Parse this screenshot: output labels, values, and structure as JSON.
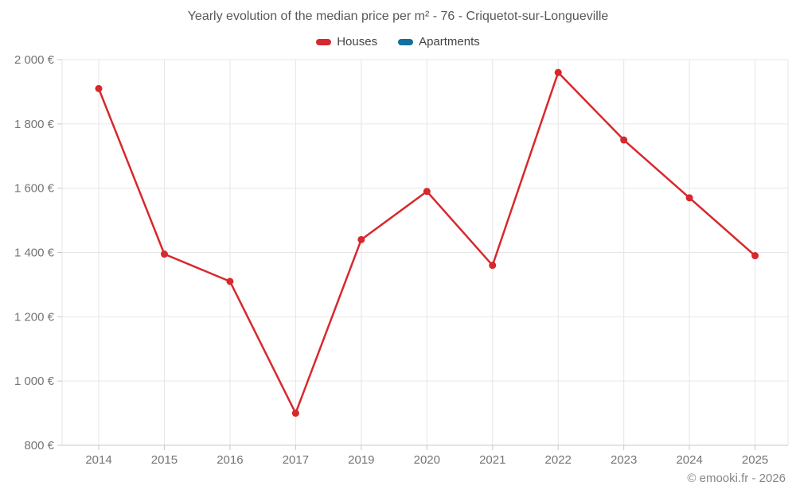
{
  "title": "Yearly evolution of the median price per m² - 76 - Criquetot-sur-Longueville",
  "legend": {
    "items": [
      {
        "label": "Houses",
        "color": "#d7282d"
      },
      {
        "label": "Apartments",
        "color": "#136f9e"
      }
    ]
  },
  "watermark": "© emooki.fr - 2026",
  "chart_data": {
    "type": "line",
    "title": "Yearly evolution of the median price per m² - 76 - Criquetot-sur-Longueville",
    "categories": [
      "2014",
      "2015",
      "2016",
      "2017",
      "2019",
      "2020",
      "2021",
      "2022",
      "2023",
      "2024",
      "2025"
    ],
    "series": [
      {
        "name": "Houses",
        "color": "#d7282d",
        "values": [
          1910,
          1395,
          1310,
          900,
          1440,
          1590,
          1360,
          1960,
          1750,
          1570,
          1390
        ]
      },
      {
        "name": "Apartments",
        "color": "#136f9e",
        "values": []
      }
    ],
    "xlabel": "",
    "ylabel": "",
    "ylim": [
      800,
      2000
    ],
    "y_ticks": [
      {
        "value": 2000,
        "label": "2 000 €"
      },
      {
        "value": 1800,
        "label": "1 800 €"
      },
      {
        "value": 1600,
        "label": "1 600 €"
      },
      {
        "value": 1400,
        "label": "1 400 €"
      },
      {
        "value": 1200,
        "label": "1 200 €"
      },
      {
        "value": 1000,
        "label": "1 000 €"
      },
      {
        "value": 800,
        "label": "800 €"
      }
    ],
    "grid": true,
    "legend_position": "top",
    "colors": {
      "grid": "#e6e6e6",
      "axis": "#c9c9c9",
      "tick_label": "#747478"
    }
  }
}
